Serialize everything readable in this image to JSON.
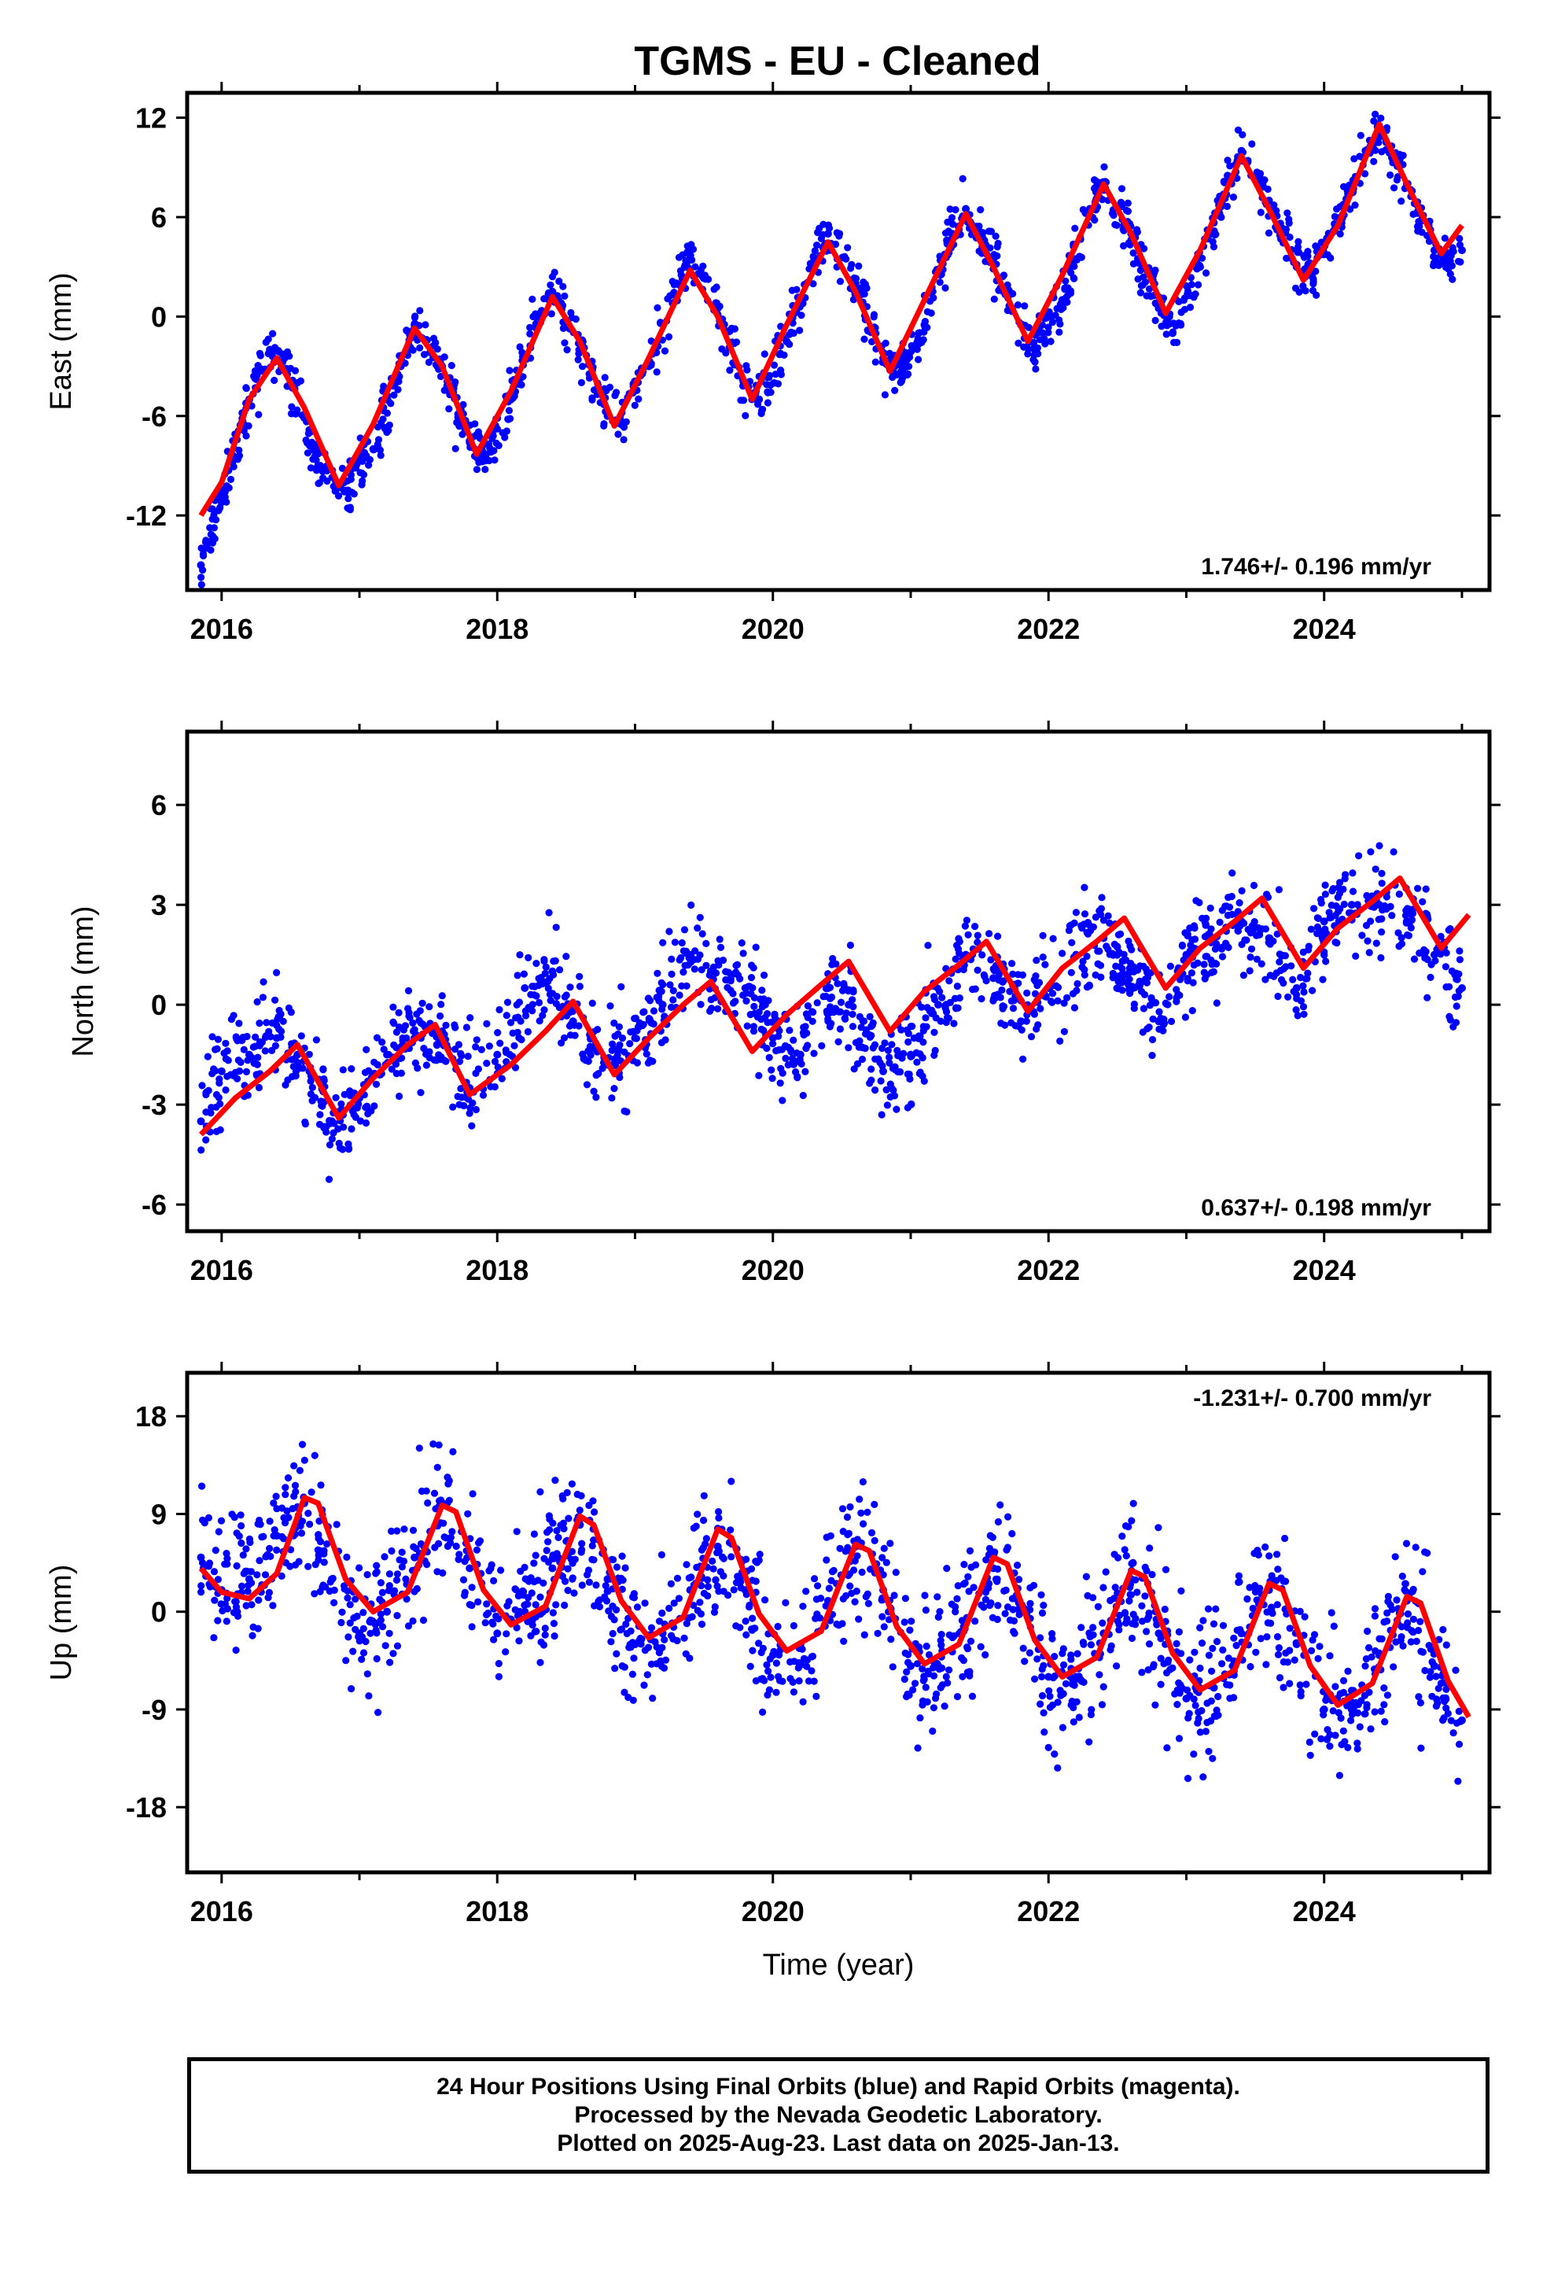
{
  "page_title": "TGMS  - EU - Cleaned",
  "footer": {
    "line1": "24 Hour Positions Using Final Orbits (blue) and Rapid Orbits (magenta).",
    "line2": "Processed by the Nevada Geodetic Laboratory.",
    "line3": "Plotted on 2025-Aug-23. Last data on 2025-Jan-13."
  },
  "colors": {
    "points": "#0000ff",
    "fit": "#ff0000",
    "frame": "#000000",
    "background": "#ffffff"
  },
  "chart_data": [
    {
      "type": "scatter",
      "title": "TGMS  - EU - Cleaned",
      "xlabel": "",
      "ylabel": "East (mm)",
      "xlim": [
        2015.75,
        2025.2
      ],
      "ylim": [
        -16.5,
        13.5
      ],
      "xticks": [
        2016,
        2018,
        2020,
        2022,
        2024
      ],
      "xtick_labels": [
        "2016",
        "2018",
        "2020",
        "2022",
        "2024"
      ],
      "yticks": [
        12,
        6,
        0,
        -6,
        -12
      ],
      "ytick_labels": [
        "12",
        "6",
        "0",
        "-6",
        "-12"
      ],
      "annotation": "1.746+/- 0.196 mm/yr",
      "annotation_position": "bottom-right",
      "series": [
        {
          "role": "daily positions",
          "color": "#0000ff",
          "x": [
            2015.85,
            2016.0,
            2016.2,
            2016.35,
            2016.5,
            2016.7,
            2016.9,
            2017.1,
            2017.3,
            2017.4,
            2017.6,
            2017.8,
            2017.9,
            2018.1,
            2018.3,
            2018.4,
            2018.6,
            2018.8,
            2018.9,
            2019.1,
            2019.3,
            2019.4,
            2019.6,
            2019.8,
            2019.9,
            2020.1,
            2020.3,
            2020.4,
            2020.6,
            2020.8,
            2020.9,
            2021.1,
            2021.3,
            2021.4,
            2021.6,
            2021.8,
            2021.9,
            2022.1,
            2022.3,
            2022.4,
            2022.6,
            2022.8,
            2022.9,
            2023.1,
            2023.3,
            2023.4,
            2023.6,
            2023.8,
            2023.9,
            2024.1,
            2024.3,
            2024.4,
            2024.6,
            2024.8,
            2024.9,
            2025.0
          ],
          "y": [
            -15.0,
            -11.0,
            -5.0,
            -2.0,
            -4.0,
            -9.0,
            -10.5,
            -8.0,
            -3.0,
            -0.5,
            -3.0,
            -7.5,
            -8.5,
            -5.0,
            0.0,
            1.5,
            -1.5,
            -6.0,
            -6.5,
            -3.0,
            2.0,
            3.5,
            0.5,
            -4.0,
            -5.0,
            -1.5,
            3.5,
            5.0,
            2.0,
            -2.5,
            -3.5,
            -0.5,
            5.0,
            6.5,
            3.5,
            -0.5,
            -2.0,
            1.0,
            6.5,
            8.0,
            5.0,
            0.5,
            -1.0,
            3.0,
            8.5,
            10.0,
            7.0,
            3.0,
            2.5,
            5.5,
            10.0,
            11.5,
            8.0,
            4.0,
            3.5,
            4.0
          ]
        },
        {
          "role": "fit",
          "color": "#ff0000",
          "x": [
            2015.85,
            2016.0,
            2016.2,
            2016.4,
            2016.6,
            2016.85,
            2017.1,
            2017.4,
            2017.6,
            2017.85,
            2018.1,
            2018.4,
            2018.6,
            2018.85,
            2019.1,
            2019.4,
            2019.6,
            2019.85,
            2020.1,
            2020.4,
            2020.6,
            2020.85,
            2021.1,
            2021.4,
            2021.6,
            2021.85,
            2022.1,
            2022.4,
            2022.6,
            2022.85,
            2023.1,
            2023.4,
            2023.6,
            2023.85,
            2024.1,
            2024.4,
            2024.6,
            2024.85,
            2025.0
          ],
          "y": [
            -12.0,
            -10.0,
            -5.0,
            -2.5,
            -5.5,
            -10.2,
            -6.5,
            -0.7,
            -3.0,
            -8.3,
            -4.5,
            1.2,
            -1.5,
            -6.6,
            -2.5,
            2.8,
            0.0,
            -5.0,
            -0.5,
            4.5,
            1.5,
            -3.3,
            1.0,
            6.2,
            3.0,
            -1.5,
            2.5,
            8.0,
            5.0,
            0.2,
            4.0,
            9.7,
            6.5,
            2.2,
            5.5,
            11.6,
            8.0,
            3.8,
            5.5
          ]
        }
      ]
    },
    {
      "type": "scatter",
      "xlabel": "",
      "ylabel": "North (mm)",
      "xlim": [
        2015.75,
        2025.2
      ],
      "ylim": [
        -6.8,
        8.2
      ],
      "xticks": [
        2016,
        2018,
        2020,
        2022,
        2024
      ],
      "xtick_labels": [
        "2016",
        "2018",
        "2020",
        "2022",
        "2024"
      ],
      "yticks": [
        6,
        3,
        0,
        -3,
        -6
      ],
      "ytick_labels": [
        "6",
        "3",
        "0",
        "-3",
        "-6"
      ],
      "annotation": "0.637+/- 0.198 mm/yr",
      "annotation_position": "bottom-right",
      "series": [
        {
          "role": "daily positions",
          "color": "#0000ff",
          "x": [
            2015.85,
            2016.0,
            2016.2,
            2016.4,
            2016.55,
            2016.8,
            2017.0,
            2017.2,
            2017.4,
            2017.6,
            2017.8,
            2018.0,
            2018.2,
            2018.4,
            2018.55,
            2018.8,
            2019.0,
            2019.2,
            2019.4,
            2019.55,
            2019.8,
            2020.0,
            2020.2,
            2020.4,
            2020.55,
            2020.8,
            2021.0,
            2021.2,
            2021.4,
            2021.6,
            2021.8,
            2022.0,
            2022.2,
            2022.4,
            2022.6,
            2022.8,
            2023.0,
            2023.2,
            2023.4,
            2023.6,
            2023.8,
            2024.0,
            2024.2,
            2024.4,
            2024.6,
            2024.8,
            2025.0
          ],
          "y": [
            -3.5,
            -2.0,
            -1.5,
            -1.0,
            -1.5,
            -3.5,
            -2.8,
            -1.5,
            -1.0,
            -0.8,
            -2.5,
            -1.5,
            0.5,
            1.0,
            -0.5,
            -1.8,
            -1.0,
            0.0,
            1.5,
            1.0,
            0.5,
            -1.0,
            -1.5,
            0.5,
            0.0,
            -2.0,
            -1.5,
            0.0,
            1.5,
            0.8,
            -0.5,
            0.5,
            1.5,
            2.0,
            1.0,
            -0.5,
            1.5,
            2.0,
            2.5,
            2.0,
            0.5,
            2.5,
            3.0,
            3.0,
            2.5,
            1.5,
            0.5
          ]
        },
        {
          "role": "fit",
          "color": "#ff0000",
          "x": [
            2015.85,
            2016.1,
            2016.35,
            2016.55,
            2016.85,
            2017.1,
            2017.35,
            2017.55,
            2017.8,
            2018.1,
            2018.35,
            2018.55,
            2018.85,
            2019.1,
            2019.35,
            2019.55,
            2019.85,
            2020.1,
            2020.35,
            2020.55,
            2020.85,
            2021.1,
            2021.35,
            2021.55,
            2021.85,
            2022.1,
            2022.35,
            2022.55,
            2022.85,
            2023.1,
            2023.35,
            2023.55,
            2023.85,
            2024.1,
            2024.35,
            2024.55,
            2024.85,
            2025.05
          ],
          "y": [
            -3.9,
            -2.8,
            -2.0,
            -1.2,
            -3.4,
            -2.2,
            -1.2,
            -0.6,
            -2.7,
            -1.8,
            -0.8,
            0.1,
            -2.1,
            -1.0,
            0.0,
            0.7,
            -1.4,
            -0.3,
            0.6,
            1.3,
            -0.8,
            0.4,
            1.2,
            1.9,
            -0.2,
            1.1,
            1.9,
            2.6,
            0.5,
            1.7,
            2.5,
            3.2,
            1.1,
            2.3,
            3.1,
            3.8,
            1.7,
            2.7
          ]
        }
      ]
    },
    {
      "type": "scatter",
      "xlabel": "Time (year)",
      "ylabel": "Up (mm)",
      "xlim": [
        2015.75,
        2025.2
      ],
      "ylim": [
        -24,
        22
      ],
      "xticks": [
        2016,
        2018,
        2020,
        2022,
        2024
      ],
      "xtick_labels": [
        "2016",
        "2018",
        "2020",
        "2022",
        "2024"
      ],
      "yticks": [
        18,
        9,
        0,
        -9,
        -18
      ],
      "ytick_labels": [
        "18",
        "9",
        "0",
        "-9",
        "-18"
      ],
      "annotation": "-1.231+/- 0.700 mm/yr",
      "annotation_position": "top-right",
      "series": [
        {
          "role": "daily positions",
          "color": "#0000ff",
          "x": [
            2015.85,
            2016.0,
            2016.2,
            2016.4,
            2016.6,
            2016.8,
            2017.0,
            2017.2,
            2017.4,
            2017.6,
            2017.8,
            2018.0,
            2018.2,
            2018.4,
            2018.6,
            2018.8,
            2019.0,
            2019.2,
            2019.4,
            2019.6,
            2019.8,
            2020.0,
            2020.2,
            2020.4,
            2020.6,
            2020.8,
            2021.0,
            2021.2,
            2021.4,
            2021.6,
            2021.8,
            2022.0,
            2022.2,
            2022.4,
            2022.6,
            2022.8,
            2023.0,
            2023.2,
            2023.4,
            2023.6,
            2023.8,
            2024.0,
            2024.2,
            2024.4,
            2024.6,
            2024.8,
            2025.0
          ],
          "y": [
            5.0,
            2.0,
            3.0,
            7.0,
            10.0,
            3.0,
            -2.0,
            0.0,
            5.0,
            10.0,
            4.0,
            -2.0,
            0.0,
            4.0,
            8.0,
            3.0,
            -3.0,
            -2.0,
            2.0,
            6.0,
            2.0,
            -4.0,
            -3.0,
            1.0,
            6.0,
            2.0,
            -5.0,
            -5.0,
            -1.0,
            4.0,
            0.0,
            -6.0,
            -6.0,
            -2.0,
            3.0,
            -2.0,
            -8.0,
            -7.0,
            -2.0,
            2.0,
            -3.0,
            -9.0,
            -9.0,
            -4.0,
            1.0,
            -5.0,
            -10.0
          ]
        },
        {
          "role": "fit",
          "color": "#ff0000",
          "x": [
            2015.85,
            2016.0,
            2016.2,
            2016.4,
            2016.6,
            2016.7,
            2016.9,
            2017.1,
            2017.35,
            2017.6,
            2017.7,
            2017.9,
            2018.1,
            2018.35,
            2018.6,
            2018.7,
            2018.9,
            2019.1,
            2019.35,
            2019.6,
            2019.7,
            2019.9,
            2020.1,
            2020.35,
            2020.6,
            2020.7,
            2020.9,
            2021.1,
            2021.35,
            2021.6,
            2021.7,
            2021.9,
            2022.1,
            2022.35,
            2022.6,
            2022.7,
            2022.9,
            2023.1,
            2023.35,
            2023.6,
            2023.7,
            2023.9,
            2024.1,
            2024.35,
            2024.6,
            2024.7,
            2024.9,
            2025.05
          ],
          "y": [
            4.0,
            1.8,
            1.2,
            3.5,
            10.5,
            10.0,
            3.0,
            0.0,
            1.8,
            9.8,
            9.2,
            2.0,
            -1.2,
            0.5,
            8.8,
            8.0,
            1.0,
            -2.4,
            -0.5,
            7.6,
            6.8,
            -0.2,
            -3.6,
            -1.8,
            6.2,
            5.6,
            -1.4,
            -4.8,
            -3.0,
            5.0,
            4.4,
            -2.6,
            -6.0,
            -4.2,
            3.8,
            3.2,
            -3.8,
            -7.2,
            -5.4,
            2.6,
            2.0,
            -5.0,
            -8.6,
            -6.6,
            1.4,
            0.8,
            -6.4,
            -9.7
          ]
        }
      ]
    }
  ]
}
